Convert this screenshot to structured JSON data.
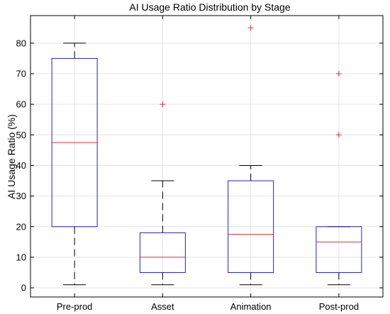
{
  "chart_data": {
    "type": "box",
    "title": "AI Usage Ratio Distribution by Stage",
    "xlabel": "",
    "ylabel": "AI Usage Ratio (%)",
    "ylim": [
      -3,
      89
    ],
    "yticks": [
      0,
      10,
      20,
      30,
      40,
      50,
      60,
      70,
      80
    ],
    "grid": true,
    "categories": [
      "Pre-prod",
      "Asset",
      "Animation",
      "Post-prod"
    ],
    "boxes": [
      {
        "category": "Pre-prod",
        "whisker_low": 1,
        "q1": 20,
        "median": 47.5,
        "q3": 75,
        "whisker_high": 80,
        "outliers": []
      },
      {
        "category": "Asset",
        "whisker_low": 1,
        "q1": 5,
        "median": 10,
        "q3": 18,
        "whisker_high": 35,
        "outliers": [
          60
        ]
      },
      {
        "category": "Animation",
        "whisker_low": 1,
        "q1": 5,
        "median": 17.5,
        "q3": 35,
        "whisker_high": 40,
        "outliers": [
          85
        ]
      },
      {
        "category": "Post-prod",
        "whisker_low": 1,
        "q1": 5,
        "median": 15,
        "q3": 20,
        "whisker_high": 20,
        "outliers": [
          50,
          70
        ]
      }
    ],
    "colors": {
      "box": "#2222cc",
      "median": "#e03030",
      "outlier": "#e03030",
      "whisker": "#000000",
      "grid": "#e4e4e4"
    }
  }
}
